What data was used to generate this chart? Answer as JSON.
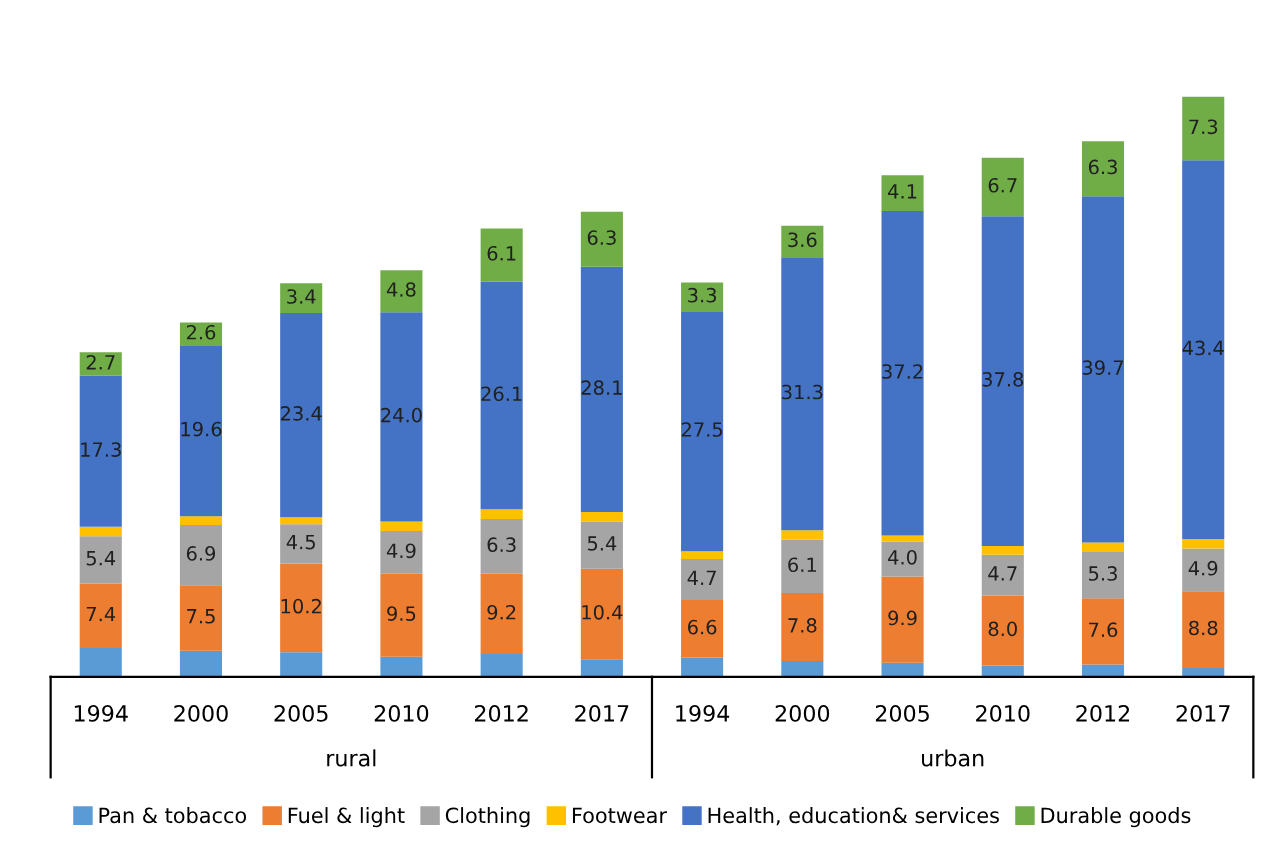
{
  "chart_data": {
    "type": "bar",
    "stacked": true,
    "categories": [
      "1994",
      "2000",
      "2005",
      "2010",
      "2012",
      "2017",
      "1994",
      "2000",
      "2005",
      "2010",
      "2012",
      "2017"
    ],
    "series": [
      {
        "name": "Pan & tobacco",
        "color": "#5b9bd5",
        "values": [
          3.3,
          3.0,
          2.8,
          2.3,
          2.6,
          2.0,
          2.2,
          1.8,
          1.6,
          1.3,
          1.4,
          1.0
        ],
        "value_labels": [
          null,
          null,
          null,
          null,
          null,
          null,
          null,
          null,
          null,
          null,
          null,
          null
        ]
      },
      {
        "name": "Fuel & light",
        "color": "#ed7d31",
        "values": [
          7.4,
          7.5,
          10.2,
          9.5,
          9.2,
          10.4,
          6.6,
          7.8,
          9.9,
          8.0,
          7.6,
          8.8
        ],
        "value_labels": [
          "7.4",
          "7.5",
          "10.2",
          "9.5",
          "9.2",
          "10.4",
          "6.6",
          "7.8",
          "9.9",
          "8.0",
          "7.6",
          "8.8"
        ]
      },
      {
        "name": "Clothing",
        "color": "#a5a5a5",
        "values": [
          5.4,
          6.9,
          4.5,
          4.9,
          6.3,
          5.4,
          4.7,
          6.1,
          4.0,
          4.7,
          5.3,
          4.9
        ],
        "value_labels": [
          "5.4",
          "6.9",
          "4.5",
          "4.9",
          "6.3",
          "5.4",
          "4.7",
          "6.1",
          "4.0",
          "4.7",
          "5.3",
          "4.9"
        ]
      },
      {
        "name": "Footwear",
        "color": "#ffc000",
        "values": [
          1.1,
          1.0,
          0.8,
          1.1,
          1.1,
          1.1,
          0.9,
          1.1,
          0.7,
          1.0,
          1.1,
          1.1
        ],
        "value_labels": [
          null,
          null,
          null,
          null,
          null,
          null,
          null,
          null,
          null,
          null,
          null,
          null
        ]
      },
      {
        "name": "Health, education& services",
        "color": "#4472c4",
        "values": [
          17.3,
          19.6,
          23.4,
          24.0,
          26.1,
          28.1,
          27.5,
          31.3,
          37.2,
          37.8,
          39.7,
          43.4
        ],
        "value_labels": [
          "17.3",
          "19.6",
          "23.4",
          "24.0",
          "26.1",
          "28.1",
          "27.5",
          "31.3",
          "37.2",
          "37.8",
          "39.7",
          "43.4"
        ]
      },
      {
        "name": "Durable goods",
        "color": "#70ad47",
        "values": [
          2.7,
          2.6,
          3.4,
          4.8,
          6.1,
          6.3,
          3.3,
          3.6,
          4.1,
          6.7,
          6.3,
          7.3
        ],
        "value_labels": [
          "2.7",
          "2.6",
          "3.4",
          "4.8",
          "6.1",
          "6.3",
          "3.3",
          "3.6",
          "4.1",
          "6.7",
          "6.3",
          "7.3"
        ]
      }
    ],
    "annotations": [
      "rural",
      "urban"
    ],
    "legend": "bottom",
    "grid": false
  }
}
